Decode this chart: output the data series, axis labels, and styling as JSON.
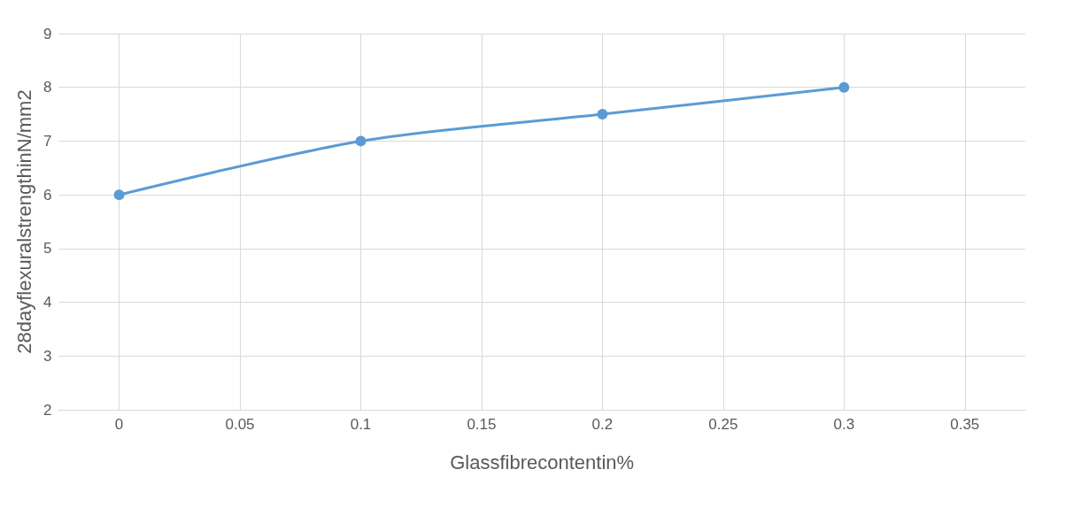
{
  "chart_data": {
    "type": "line",
    "xlabel": "Glassfibrecontentin%",
    "ylabel": "28dayflexuralstrengthinN/mm2",
    "x": [
      0,
      0.1,
      0.2,
      0.3
    ],
    "series": [
      {
        "color": "#5b9bd5",
        "values": [
          6,
          7,
          7.5,
          8
        ]
      }
    ],
    "xlim": [
      -0.025,
      0.375
    ],
    "xticks": [
      0,
      0.05,
      0.1,
      0.15,
      0.2,
      0.25,
      0.3,
      0.35
    ],
    "ylim": [
      2,
      9
    ],
    "yticks": [
      2,
      3,
      4,
      5,
      6,
      7,
      8,
      9
    ],
    "grid": true,
    "marker": "circle",
    "line_style": "solid"
  }
}
